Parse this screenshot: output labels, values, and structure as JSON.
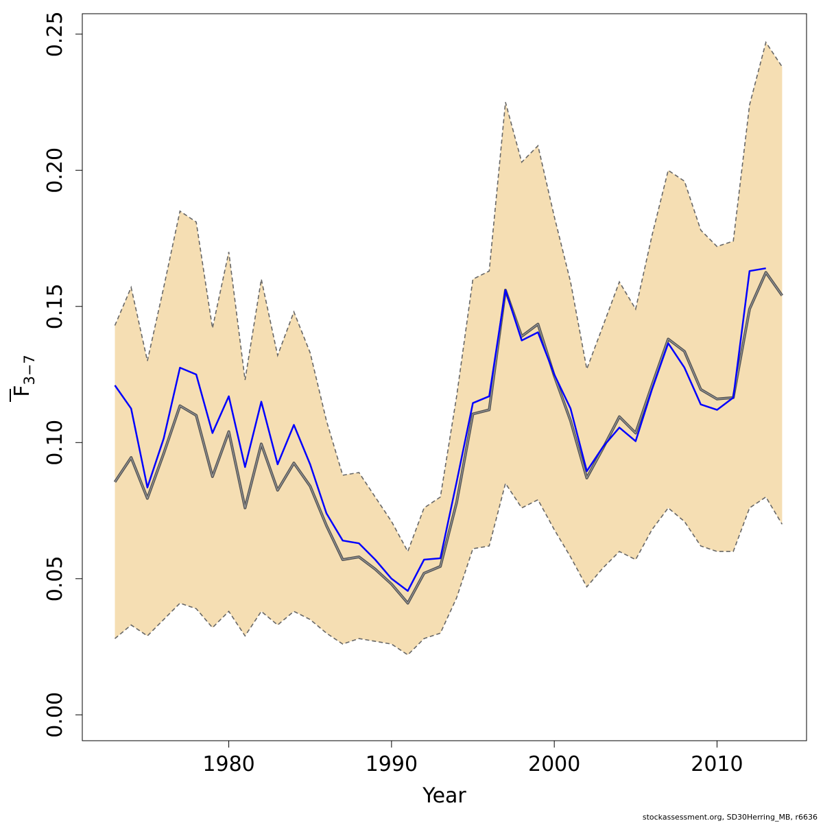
{
  "chart_data": {
    "type": "line",
    "xlabel": "Year",
    "ylabel": {
      "main": "F",
      "sub": "3−7"
    },
    "xlim": [
      1971,
      2015.5
    ],
    "ylim": [
      -0.0095,
      0.2575
    ],
    "x_ticks": [
      1980,
      1990,
      2000,
      2010
    ],
    "y_ticks": [
      "0.00",
      "0.05",
      "0.10",
      "0.15",
      "0.20",
      "0.25"
    ],
    "band_color": "#F5DEB3",
    "band_edge_color": "#666666",
    "x": [
      1973,
      1974,
      1975,
      1976,
      1977,
      1978,
      1979,
      1980,
      1981,
      1982,
      1983,
      1984,
      1985,
      1986,
      1987,
      1988,
      1989,
      1990,
      1991,
      1992,
      1993,
      1994,
      1995,
      1996,
      1997,
      1998,
      1999,
      2000,
      2001,
      2002,
      2003,
      2004,
      2005,
      2006,
      2007,
      2008,
      2009,
      2010,
      2011,
      2012,
      2013,
      2014
    ],
    "band_upper": [
      0.143,
      0.157,
      0.13,
      0.157,
      0.185,
      0.181,
      0.142,
      0.17,
      0.123,
      0.16,
      0.132,
      0.148,
      0.133,
      0.108,
      0.088,
      0.089,
      0.08,
      0.071,
      0.06,
      0.076,
      0.08,
      0.117,
      0.16,
      0.163,
      0.225,
      0.203,
      0.209,
      0.183,
      0.159,
      0.127,
      0.143,
      0.159,
      0.149,
      0.176,
      0.2,
      0.196,
      0.178,
      0.172,
      0.174,
      0.224,
      0.247,
      0.238
    ],
    "band_lower": [
      0.028,
      0.033,
      0.029,
      0.035,
      0.041,
      0.039,
      0.032,
      0.038,
      0.029,
      0.038,
      0.033,
      0.038,
      0.035,
      0.03,
      0.026,
      0.028,
      0.027,
      0.026,
      0.022,
      0.028,
      0.03,
      0.043,
      0.061,
      0.062,
      0.085,
      0.076,
      0.079,
      0.068,
      0.058,
      0.047,
      0.054,
      0.06,
      0.057,
      0.068,
      0.076,
      0.071,
      0.062,
      0.06,
      0.06,
      0.076,
      0.08,
      0.07
    ],
    "series": [
      {
        "color": "#555555",
        "values": [
          0.0855,
          0.0945,
          0.0795,
          0.096,
          0.1135,
          0.11,
          0.0875,
          0.104,
          0.076,
          0.0995,
          0.0825,
          0.0925,
          0.084,
          0.0695,
          0.057,
          0.058,
          0.0535,
          0.048,
          0.041,
          0.052,
          0.0545,
          0.078,
          0.1105,
          0.112,
          0.156,
          0.139,
          0.1435,
          0.1245,
          0.108,
          0.087,
          0.098,
          0.1095,
          0.1035,
          0.121,
          0.138,
          0.1335,
          0.1195,
          0.116,
          0.1165,
          0.149,
          0.1625,
          0.154
        ]
      },
      {
        "color": "#0000FF",
        "values": [
          0.121,
          0.1125,
          0.0835,
          0.1015,
          0.1275,
          0.125,
          0.1035,
          0.117,
          0.091,
          0.115,
          0.092,
          0.1065,
          0.092,
          0.074,
          0.064,
          0.063,
          0.057,
          0.05,
          0.0455,
          0.057,
          0.0575,
          0.0855,
          0.1145,
          0.117,
          0.156,
          0.1375,
          0.1405,
          0.125,
          0.1125,
          0.0895,
          0.0985,
          0.1055,
          0.1005,
          0.1195,
          0.1365,
          0.1275,
          0.114,
          0.112,
          0.1165,
          0.163,
          0.164,
          null
        ]
      }
    ]
  },
  "footer": "stockassessment.org, SD30Herring_MB, r6636"
}
